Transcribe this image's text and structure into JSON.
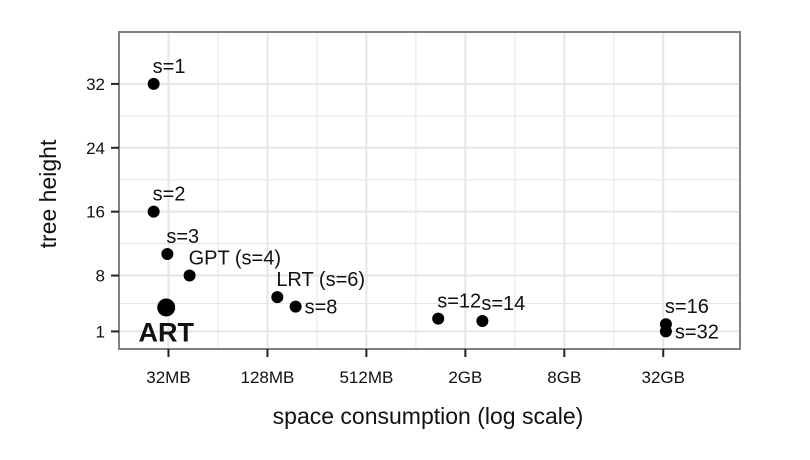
{
  "chart_data": {
    "type": "scatter",
    "title": "",
    "xlabel": "space consumption (log scale)",
    "ylabel": "tree height",
    "x_scale": "log2",
    "x_unit": "MB",
    "xlim": [
      16,
      96000
    ],
    "ylim": [
      -1.2,
      38.5
    ],
    "x_ticks": [
      {
        "value": 32,
        "label": "32MB"
      },
      {
        "value": 128,
        "label": "128MB"
      },
      {
        "value": 512,
        "label": "512MB"
      },
      {
        "value": 2048,
        "label": "2GB"
      },
      {
        "value": 8192,
        "label": "8GB"
      },
      {
        "value": 32768,
        "label": "32GB"
      }
    ],
    "y_ticks": [
      {
        "value": 1,
        "label": "1"
      },
      {
        "value": 8,
        "label": "8"
      },
      {
        "value": 16,
        "label": "16"
      },
      {
        "value": 24,
        "label": "24"
      },
      {
        "value": 32,
        "label": "32"
      }
    ],
    "grid": true,
    "legend": "none",
    "points": [
      {
        "label": "s=1",
        "x": 26,
        "y": 32,
        "label_pos": "above-right"
      },
      {
        "label": "s=2",
        "x": 26,
        "y": 16,
        "label_pos": "above-right"
      },
      {
        "label": "s=3",
        "x": 31.5,
        "y": 10.7,
        "label_pos": "above-right"
      },
      {
        "label": "GPT (s=4)",
        "x": 43,
        "y": 8,
        "label_pos": "above-right"
      },
      {
        "label": "LRT (s=6)",
        "x": 147,
        "y": 5.3,
        "label_pos": "above-right"
      },
      {
        "label": "s=8",
        "x": 190,
        "y": 4.1,
        "label_pos": "right"
      },
      {
        "label": "s=12",
        "x": 1400,
        "y": 2.6,
        "label_pos": "above-right"
      },
      {
        "label": "s=14",
        "x": 2600,
        "y": 2.3,
        "label_pos": "above-right"
      },
      {
        "label": "s=16",
        "x": 34000,
        "y": 1.9,
        "label_pos": "above-right"
      },
      {
        "label": "s=32",
        "x": 34000,
        "y": 1,
        "label_pos": "right"
      },
      {
        "label": "ART",
        "x": 31,
        "y": 4,
        "label_pos": "below",
        "emphasis": true
      }
    ],
    "colors": {
      "point": "#000000",
      "grid": "#e6e6e6",
      "panel_border": "#808080"
    }
  }
}
